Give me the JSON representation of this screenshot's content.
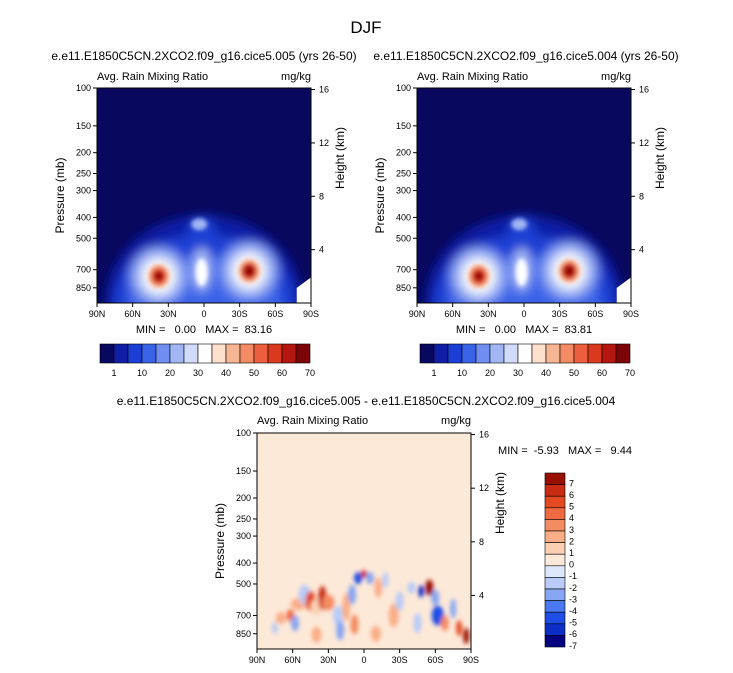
{
  "page_title": "DJF",
  "colors": {
    "rain_scale": [
      "#08085e",
      "#0f1fa6",
      "#1b3fd4",
      "#3a64e8",
      "#6f8ef0",
      "#a2b6f5",
      "#cfdbf8",
      "#ffffff",
      "#fde0cc",
      "#f8b592",
      "#f48b64",
      "#ec5f3d",
      "#d9391c",
      "#b5170e",
      "#7c0406"
    ],
    "diff_scale": [
      "#000080",
      "#0c2ec6",
      "#1e4ee6",
      "#4a78f0",
      "#86a6f3",
      "#b9cbf7",
      "#dde7fb",
      "#fde9d8",
      "#fbd0b2",
      "#f9ae88",
      "#f48c62",
      "#ef6a40",
      "#e34a22",
      "#c92c12",
      "#981002"
    ]
  },
  "chart_data": [
    {
      "type": "heatmap",
      "title": "e.e11.E1850C5CN.2XCO2.f09_g16.cice5.005 (yrs 26-50)",
      "subtitle_left": "Avg. Rain Mixing Ratio",
      "subtitle_right": "mg/kg",
      "ylabel": "Pressure (mb)",
      "ylabel_right": "Height (km)",
      "xticks": [
        "90N",
        "60N",
        "30N",
        "0",
        "30S",
        "60S",
        "90S"
      ],
      "yticks": [
        "100",
        "150",
        "200",
        "250",
        "300",
        "400",
        "500",
        "700",
        "850"
      ],
      "yticks_right": [
        "16",
        "12",
        "8",
        "4"
      ],
      "ylim": [
        1000,
        100
      ],
      "xlim": [
        "90N",
        "90S"
      ],
      "stats": "MIN =   0.00   MAX =  83.16",
      "min": 0.0,
      "max": 83.16,
      "colorbar_labels": [
        "1",
        "10",
        "20",
        "30",
        "40",
        "50",
        "60",
        "70"
      ],
      "peaks": [
        {
          "lat": 38,
          "p": 750,
          "value": 70
        },
        {
          "lat": -38,
          "p": 710,
          "value": 83
        }
      ]
    },
    {
      "type": "heatmap",
      "title": "e.e11.E1850C5CN.2XCO2.f09_g16.cice5.004 (yrs 26-50)",
      "subtitle_left": "Avg. Rain Mixing Ratio",
      "subtitle_right": "mg/kg",
      "ylabel": "Pressure (mb)",
      "ylabel_right": "Height (km)",
      "xticks": [
        "90N",
        "60N",
        "30N",
        "0",
        "30S",
        "60S",
        "90S"
      ],
      "yticks": [
        "100",
        "150",
        "200",
        "250",
        "300",
        "400",
        "500",
        "700",
        "850"
      ],
      "yticks_right": [
        "16",
        "12",
        "8",
        "4"
      ],
      "ylim": [
        1000,
        100
      ],
      "xlim": [
        "90N",
        "90S"
      ],
      "stats": "MIN =   0.00   MAX =  83.81",
      "min": 0.0,
      "max": 83.81,
      "colorbar_labels": [
        "1",
        "10",
        "20",
        "30",
        "40",
        "50",
        "60",
        "70"
      ],
      "peaks": [
        {
          "lat": 38,
          "p": 750,
          "value": 70
        },
        {
          "lat": -38,
          "p": 710,
          "value": 84
        }
      ]
    },
    {
      "type": "heatmap",
      "title": "e.e11.E1850C5CN.2XCO2.f09_g16.cice5.005 - e.e11.E1850C5CN.2XCO2.f09_g16.cice5.004",
      "subtitle_left": "Avg. Rain Mixing Ratio",
      "subtitle_right": "mg/kg",
      "ylabel": "Pressure (mb)",
      "ylabel_right": "Height (km)",
      "xticks": [
        "90N",
        "60N",
        "30N",
        "0",
        "30S",
        "60S",
        "90S"
      ],
      "yticks": [
        "100",
        "150",
        "200",
        "250",
        "300",
        "400",
        "500",
        "700",
        "850"
      ],
      "yticks_right": [
        "16",
        "12",
        "8",
        "4"
      ],
      "ylim": [
        1000,
        100
      ],
      "xlim": [
        "90N",
        "90S"
      ],
      "stats": "MIN =  -5.93   MAX =   9.44",
      "min": -5.93,
      "max": 9.44,
      "colorbar_labels": [
        "7",
        "6",
        "5",
        "4",
        "3",
        "2",
        "1",
        "0",
        "-1",
        "-2",
        "-3",
        "-4",
        "-5",
        "-6",
        "-7"
      ]
    }
  ]
}
